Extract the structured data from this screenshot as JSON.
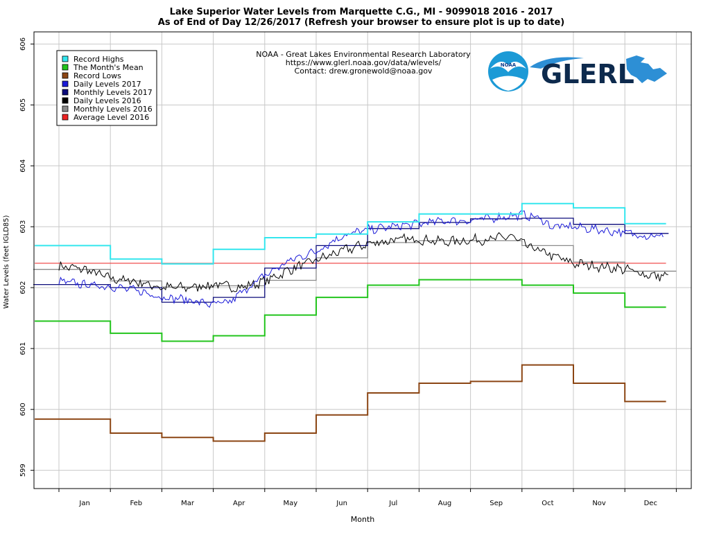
{
  "chart_data": {
    "type": "line",
    "title": "Lake Superior Water Levels from Marquette C.G., MI - 9099018 2016 - 2017",
    "subtitle": "As of End of Day 12/26/2017 (Refresh your browser to ensure plot is up to date)",
    "xlabel": "Month",
    "ylabel": "Water Levels (feet IGLD85)",
    "x_ticks": [
      "Jan",
      "Feb",
      "Mar",
      "Apr",
      "May",
      "Jun",
      "Jul",
      "Aug",
      "Sep",
      "Oct",
      "Nov",
      "Dec"
    ],
    "y_ticks": [
      599,
      600,
      601,
      602,
      603,
      604,
      605,
      606
    ],
    "ylim": [
      598.7,
      606.2
    ],
    "xlim": [
      0,
      12.4
    ],
    "grid": true,
    "legend_position": "top-left",
    "legend": [
      {
        "name": "Record Highs",
        "color": "#33e6ee"
      },
      {
        "name": "The Month's Mean",
        "color": "#22c41c"
      },
      {
        "name": "Record Lows",
        "color": "#8b4513"
      },
      {
        "name": "Daily Levels 2017",
        "color": "#1a1ad8"
      },
      {
        "name": "Monthly Levels 2017",
        "color": "#0a0a7a"
      },
      {
        "name": "Daily Levels 2016",
        "color": "#000000"
      },
      {
        "name": "Monthly Levels 2016",
        "color": "#8a8a8a"
      },
      {
        "name": "Average Level 2016",
        "color": "#ee2222"
      }
    ],
    "annotation": {
      "lines": [
        "NOAA - Great Lakes Environmental Research Laboratory",
        "https://www.glerl.noaa.gov/data/wlevels/",
        "Contact: drew.gronewold@noaa.gov"
      ],
      "logo_noaa": "NOAA",
      "logo_glerl": "GLERL"
    },
    "record_highs": [
      602.69,
      602.47,
      602.39,
      602.63,
      602.82,
      602.88,
      603.08,
      603.21,
      603.21,
      603.38,
      603.31,
      603.05
    ],
    "monthly_mean": [
      601.45,
      601.25,
      601.12,
      601.21,
      601.55,
      601.84,
      602.04,
      602.13,
      602.13,
      602.04,
      601.91,
      601.68
    ],
    "record_lows": [
      599.84,
      599.61,
      599.54,
      599.48,
      599.61,
      599.91,
      600.27,
      600.43,
      600.46,
      600.73,
      600.43,
      600.13
    ],
    "monthly_2017": [
      602.05,
      602.0,
      601.76,
      601.84,
      602.32,
      602.69,
      602.97,
      603.07,
      603.13,
      603.14,
      603.04,
      602.89
    ],
    "monthly_2016": [
      602.3,
      602.11,
      602.01,
      602.03,
      602.12,
      602.49,
      602.74,
      602.77,
      602.77,
      602.69,
      602.42,
      602.27
    ],
    "average_2016": 602.4,
    "daily_2017_anchors": [
      [
        0.0,
        602.1
      ],
      [
        0.5,
        602.05
      ],
      [
        1.0,
        602.02
      ],
      [
        1.5,
        601.95
      ],
      [
        2.0,
        601.85
      ],
      [
        2.5,
        601.8
      ],
      [
        3.0,
        601.72
      ],
      [
        3.3,
        601.75
      ],
      [
        3.6,
        601.95
      ],
      [
        4.0,
        602.2
      ],
      [
        4.5,
        602.45
      ],
      [
        5.0,
        602.6
      ],
      [
        5.5,
        602.85
      ],
      [
        6.0,
        602.95
      ],
      [
        6.5,
        603.0
      ],
      [
        7.0,
        603.05
      ],
      [
        7.5,
        603.1
      ],
      [
        8.0,
        603.1
      ],
      [
        8.5,
        603.15
      ],
      [
        9.0,
        603.2
      ],
      [
        9.3,
        603.15
      ],
      [
        9.6,
        603.0
      ],
      [
        10.0,
        603.0
      ],
      [
        10.5,
        602.95
      ],
      [
        11.0,
        602.9
      ],
      [
        11.5,
        602.85
      ],
      [
        11.75,
        602.85
      ]
    ],
    "daily_2016_anchors": [
      [
        0.0,
        602.35
      ],
      [
        0.5,
        602.3
      ],
      [
        1.0,
        602.15
      ],
      [
        1.5,
        602.1
      ],
      [
        2.0,
        602.0
      ],
      [
        2.5,
        602.0
      ],
      [
        3.0,
        602.05
      ],
      [
        3.5,
        602.0
      ],
      [
        4.0,
        602.1
      ],
      [
        4.5,
        602.3
      ],
      [
        5.0,
        602.45
      ],
      [
        5.5,
        602.6
      ],
      [
        6.0,
        602.72
      ],
      [
        6.5,
        602.78
      ],
      [
        7.0,
        602.8
      ],
      [
        7.5,
        602.75
      ],
      [
        8.0,
        602.78
      ],
      [
        8.5,
        602.8
      ],
      [
        8.8,
        602.85
      ],
      [
        9.0,
        602.72
      ],
      [
        9.5,
        602.55
      ],
      [
        10.0,
        602.4
      ],
      [
        10.5,
        602.35
      ],
      [
        11.0,
        602.3
      ],
      [
        11.5,
        602.2
      ],
      [
        11.85,
        602.18
      ]
    ]
  }
}
